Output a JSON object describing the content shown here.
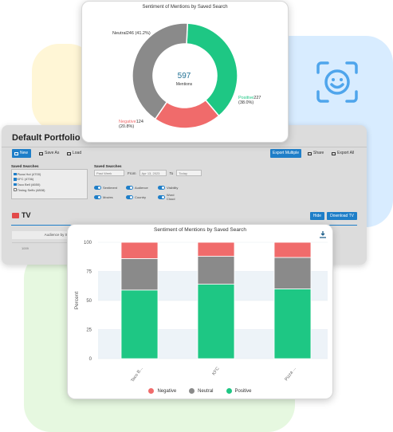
{
  "colors": {
    "negative": "#f06b6b",
    "neutral": "#8a8a8a",
    "positive": "#1ec784",
    "accent": "#1e7ec8"
  },
  "portfolio": {
    "title": "Default Portfolio",
    "toolbar": {
      "new": "New",
      "save_as": "Save As",
      "load": "Load",
      "export_multiple": "Export Multiple",
      "share": "Share",
      "export_all": "Export All"
    },
    "saved_searches": {
      "title": "Saved Searches",
      "items": [
        {
          "label": "Pizza Hut  (4700)",
          "checked": true
        },
        {
          "label": "KFC  (4736)",
          "checked": true
        },
        {
          "label": "Taco Bell  (4650)",
          "checked": true
        },
        {
          "label": "Timing Seffo  (4808)",
          "checked": false
        }
      ]
    },
    "saved_shares": {
      "title": "Saved Searches",
      "period": "Past Week",
      "from_label": "From",
      "from_value": "Apr 13, 2023",
      "to_label": "To",
      "to_value": "Today"
    },
    "toggles": [
      [
        "Sentiment",
        "Audience",
        "Visibility"
      ],
      [
        "Movies",
        "Country",
        "Word Cloud"
      ]
    ],
    "section": {
      "label": "TV",
      "hide": "Hide",
      "download": "Download TV"
    },
    "table_header": "Audience by Saved",
    "table_cell": "1009"
  },
  "donut": {
    "title": "Sentiment of Mentions by Saved Search",
    "center_value": "597",
    "center_label": "Mentions",
    "slices": [
      {
        "name": "Positive",
        "value": 227,
        "percent": "(38.0%)"
      },
      {
        "name": "Negative",
        "value": 124,
        "percent": "(20.8%)"
      },
      {
        "name": "Neutral",
        "value": 246,
        "percent": "(41.2%)"
      }
    ]
  },
  "chart_data": {
    "type": "bar",
    "stacked": true,
    "title": "Sentiment of Mentions by Saved Search",
    "ylabel": "Percent",
    "ylim": [
      0,
      100
    ],
    "yticks": [
      0,
      25,
      50,
      75,
      100
    ],
    "categories": [
      "Taco B...",
      "KFC",
      "Pizza ..."
    ],
    "series": [
      {
        "name": "Positive",
        "values": [
          59,
          64,
          60
        ]
      },
      {
        "name": "Neutral",
        "values": [
          27,
          24,
          27
        ]
      },
      {
        "name": "Negative",
        "values": [
          14,
          12,
          13
        ]
      }
    ],
    "legend": [
      "Negative",
      "Neutral",
      "Positive"
    ],
    "legend_position": "bottom"
  }
}
